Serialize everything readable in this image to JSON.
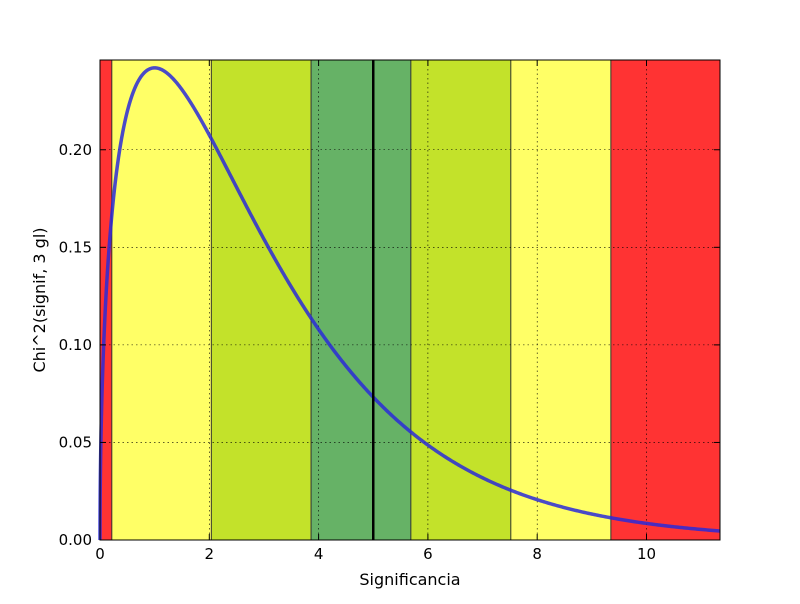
{
  "chart_data": {
    "type": "line",
    "title": "",
    "xlabel": "Significancia",
    "ylabel": "Chi^2(signif, 3 gl)",
    "xlim": [
      0,
      11.345
    ],
    "ylim": [
      0,
      0.246
    ],
    "xticks": [
      0,
      2,
      4,
      6,
      8,
      10
    ],
    "yticks": [
      0.0,
      0.05,
      0.1,
      0.15,
      0.2
    ],
    "xtick_labels": [
      "0",
      "2",
      "4",
      "6",
      "8",
      "10"
    ],
    "ytick_labels": [
      "0.00",
      "0.05",
      "0.10",
      "0.15",
      "0.20"
    ],
    "grid": true,
    "series": [
      {
        "distribution": "chi-square",
        "degrees_of_freedom": 3,
        "color": "#2a2ad8"
      }
    ],
    "bands": [
      {
        "x0": 0.0,
        "x1": 0.216,
        "color": "#ff3333"
      },
      {
        "x0": 0.216,
        "x1": 2.037,
        "color": "#ffff66"
      },
      {
        "x0": 2.037,
        "x1": 3.862,
        "color": "#c3e22a"
      },
      {
        "x0": 3.862,
        "x1": 5.0,
        "color": "#66b266"
      },
      {
        "x0": 5.0,
        "x1": 5.688,
        "color": "#66b266"
      },
      {
        "x0": 5.688,
        "x1": 7.517,
        "color": "#c3e22a"
      },
      {
        "x0": 7.517,
        "x1": 9.348,
        "color": "#ffff66"
      },
      {
        "x0": 9.348,
        "x1": 11.345,
        "color": "#ff3333"
      }
    ],
    "vertical_line": {
      "x": 5.0,
      "color": "#000000"
    }
  }
}
